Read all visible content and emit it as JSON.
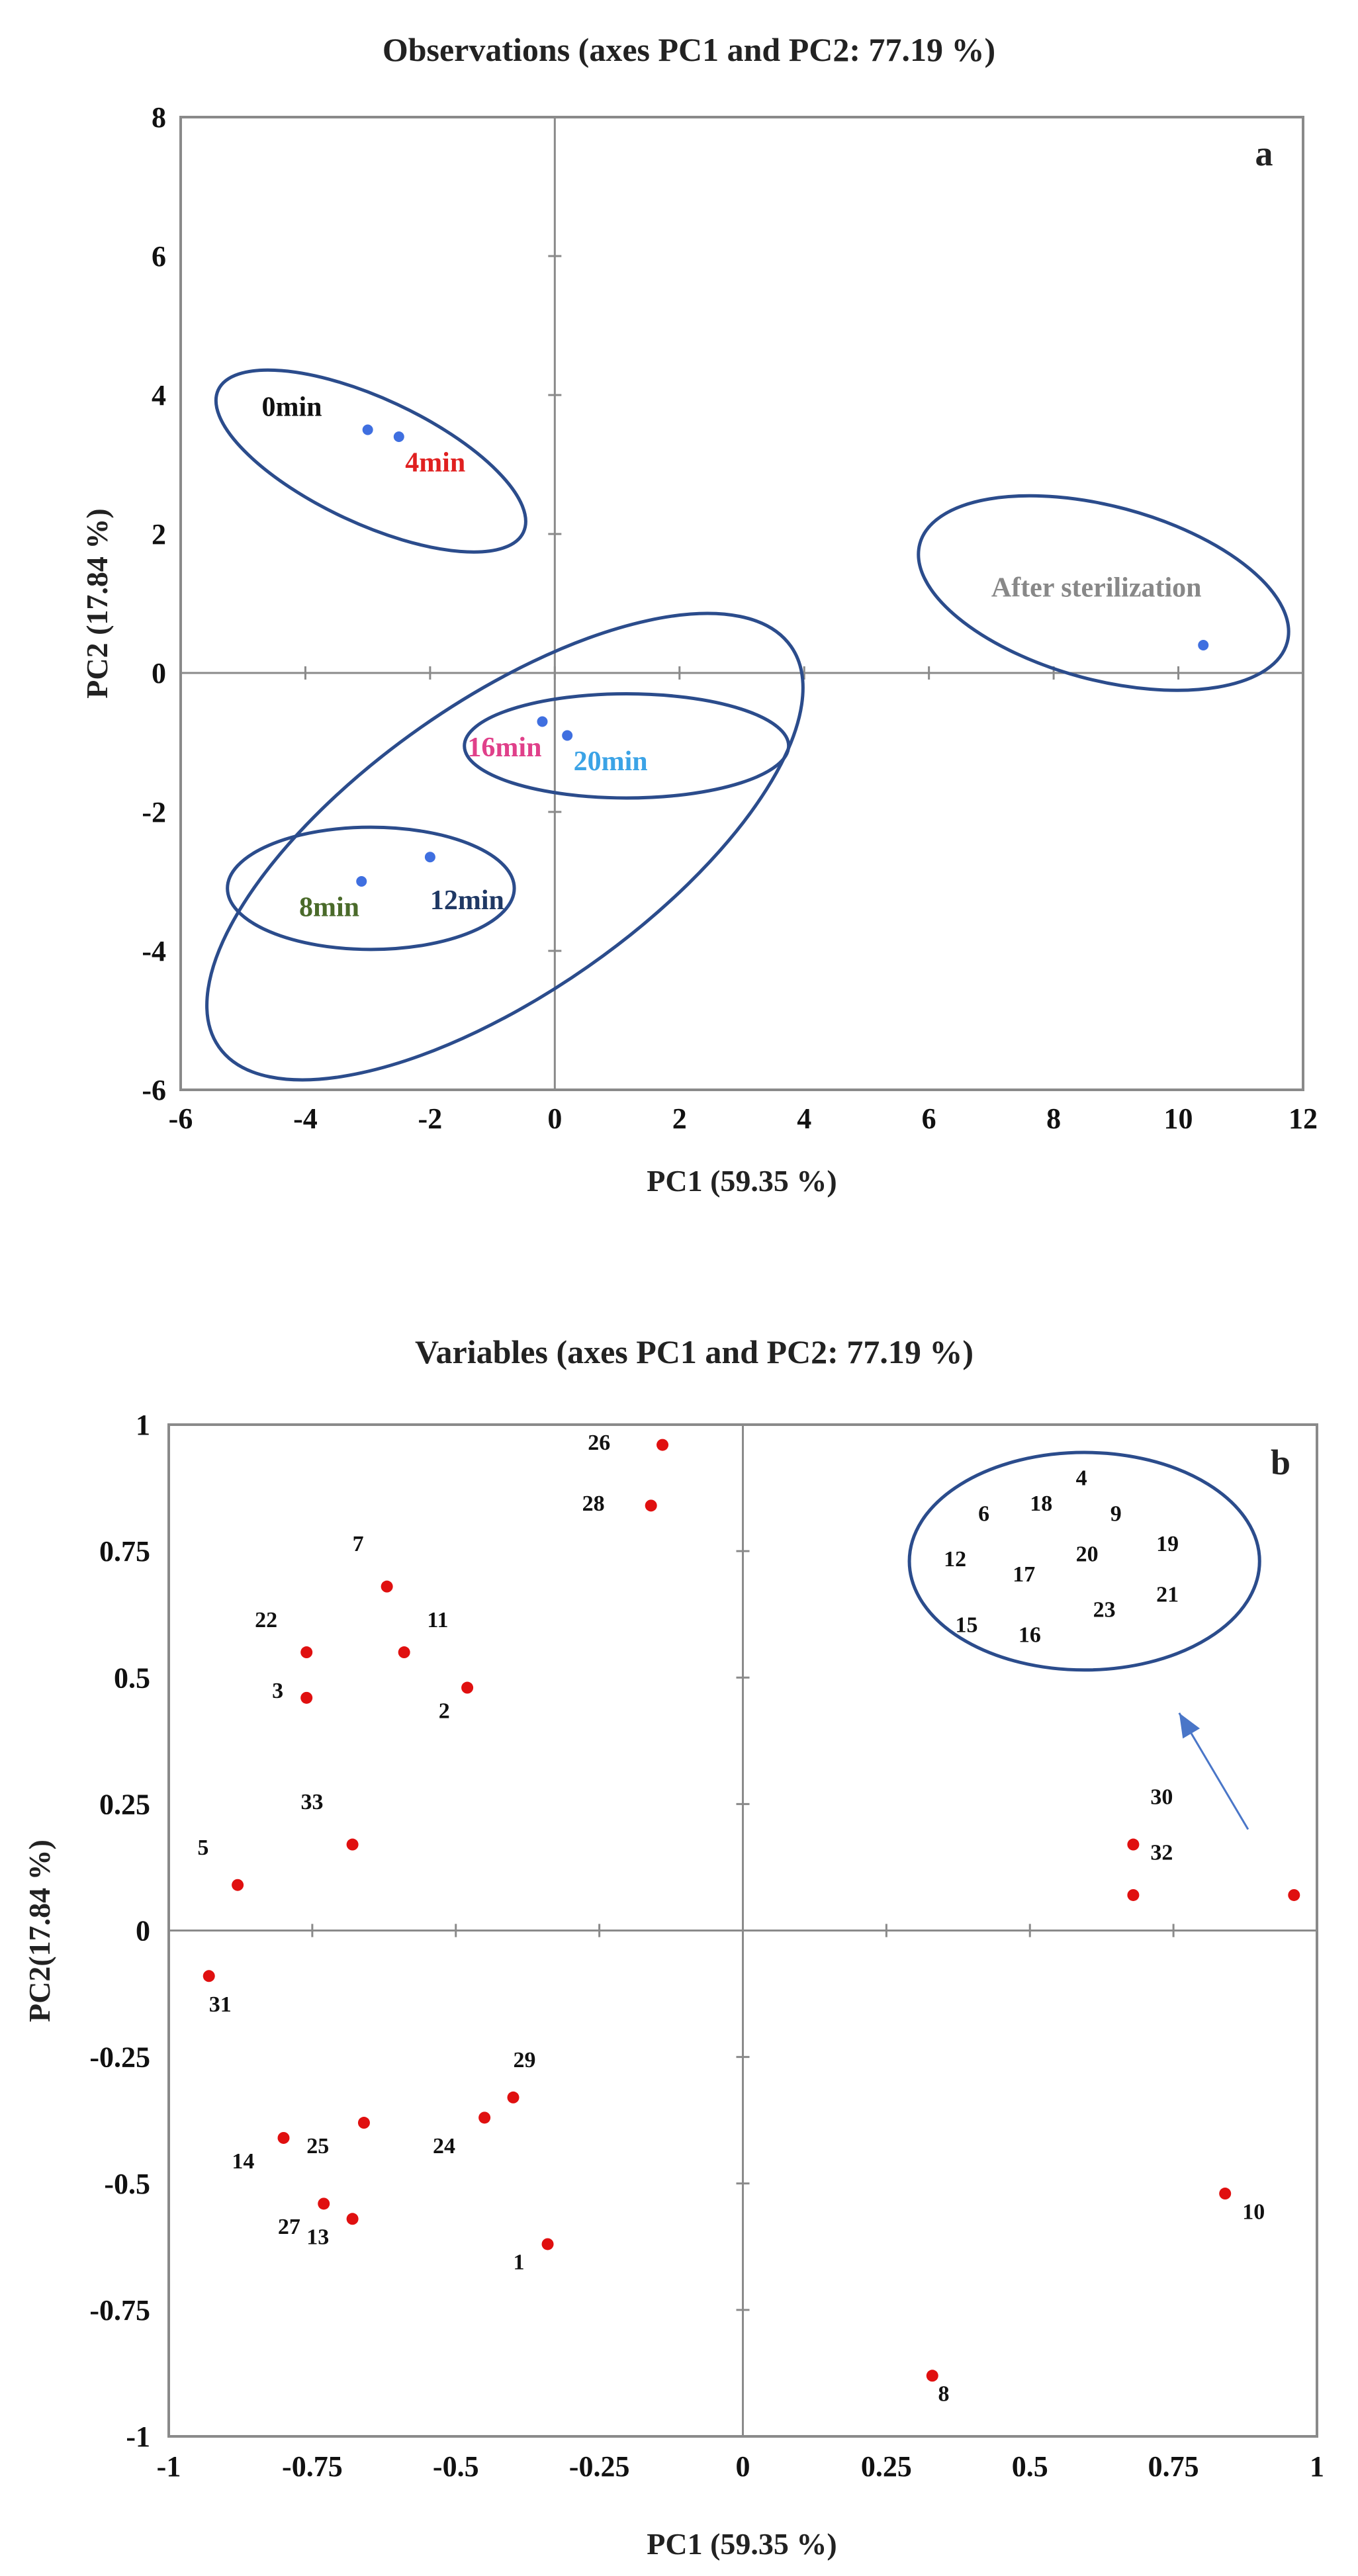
{
  "chart_data": [
    {
      "panel": "a",
      "type": "scatter",
      "title": "Observations (axes PC1 and PC2: 77.19 %)",
      "xlabel": "PC1 (59.35 %)",
      "ylabel": "PC2 (17.84 %)",
      "xlim": [
        -6,
        12
      ],
      "ylim": [
        -6,
        8
      ],
      "xticks": [
        -6,
        -4,
        -2,
        0,
        2,
        4,
        6,
        8,
        10,
        12
      ],
      "yticks": [
        -6,
        -4,
        -2,
        0,
        2,
        4,
        6,
        8
      ],
      "point_color": "#3f6fe0",
      "axis_color": "#777777",
      "ellipse_color": "#2b4c8c",
      "points": [
        {
          "x": -3.0,
          "y": 3.5
        },
        {
          "x": -2.5,
          "y": 3.4
        },
        {
          "x": -3.1,
          "y": -3.0
        },
        {
          "x": -2.0,
          "y": -2.65
        },
        {
          "x": -0.2,
          "y": -0.7
        },
        {
          "x": 0.2,
          "y": -0.9
        },
        {
          "x": 10.4,
          "y": 0.4
        }
      ],
      "labels": [
        {
          "text": "0min",
          "x": -4.7,
          "y": 3.7,
          "color": "#111111"
        },
        {
          "text": "4min",
          "x": -2.4,
          "y": 2.9,
          "color": "#e02020"
        },
        {
          "text": "8min",
          "x": -4.1,
          "y": -3.5,
          "color": "#4a6a2a"
        },
        {
          "text": "12min",
          "x": -2.0,
          "y": -3.4,
          "color": "#1f3864"
        },
        {
          "text": "16min",
          "x": -1.4,
          "y": -1.2,
          "color": "#e0408a"
        },
        {
          "text": "20min",
          "x": 0.3,
          "y": -1.4,
          "color": "#3ba3e6"
        },
        {
          "text": "After sterilization",
          "x": 7.0,
          "y": 1.1,
          "color": "#888888"
        }
      ],
      "ellipses": [
        {
          "cx": -2.95,
          "cy": 3.05,
          "rx": 2.7,
          "ry": 0.9,
          "angle": -25
        },
        {
          "cx": 1.15,
          "cy": -1.05,
          "rx": 2.6,
          "ry": 0.75,
          "angle": 0
        },
        {
          "cx": -2.95,
          "cy": -3.1,
          "rx": 2.3,
          "ry": 0.88,
          "angle": 0
        },
        {
          "cx": -0.8,
          "cy": -2.5,
          "rx": 5.6,
          "ry": 2.1,
          "angle": 35
        },
        {
          "cx": 8.8,
          "cy": 1.15,
          "rx": 3.05,
          "ry": 1.25,
          "angle": -15
        }
      ],
      "panel_tag": "a"
    },
    {
      "panel": "b",
      "type": "scatter",
      "title": "Variables (axes PC1 and PC2: 77.19 %)",
      "xlabel": "PC1 (59.35 %)",
      "ylabel": "PC2(17.84 %)",
      "xlim": [
        -1,
        1
      ],
      "ylim": [
        -1,
        1
      ],
      "xticks": [
        -1,
        -0.75,
        -0.5,
        -0.25,
        0,
        0.25,
        0.5,
        0.75,
        1
      ],
      "yticks": [
        -1,
        -0.75,
        -0.5,
        -0.25,
        0,
        0.25,
        0.5,
        0.75,
        1
      ],
      "point_color": "#e01010",
      "axis_color": "#777777",
      "ellipse_color": "#2b4c8c",
      "points": [
        {
          "x": -0.14,
          "y": 0.96
        },
        {
          "x": -0.16,
          "y": 0.84
        },
        {
          "x": -0.62,
          "y": 0.68
        },
        {
          "x": -0.59,
          "y": 0.55
        },
        {
          "x": -0.76,
          "y": 0.55
        },
        {
          "x": -0.76,
          "y": 0.46
        },
        {
          "x": -0.48,
          "y": 0.48
        },
        {
          "x": -0.68,
          "y": 0.17
        },
        {
          "x": -0.88,
          "y": 0.09
        },
        {
          "x": -0.93,
          "y": -0.09
        },
        {
          "x": -0.4,
          "y": -0.33
        },
        {
          "x": -0.45,
          "y": -0.37
        },
        {
          "x": -0.66,
          "y": -0.38
        },
        {
          "x": -0.8,
          "y": -0.41
        },
        {
          "x": -0.73,
          "y": -0.54
        },
        {
          "x": -0.68,
          "y": -0.57
        },
        {
          "x": -0.34,
          "y": -0.62
        },
        {
          "x": 0.68,
          "y": 0.17
        },
        {
          "x": 0.68,
          "y": 0.07
        },
        {
          "x": 0.96,
          "y": 0.07
        },
        {
          "x": 0.84,
          "y": -0.52
        },
        {
          "x": 0.33,
          "y": -0.88
        }
      ],
      "labels": [
        {
          "text": "26",
          "x": -0.27,
          "y": 0.95
        },
        {
          "text": "28",
          "x": -0.28,
          "y": 0.83
        },
        {
          "text": "7",
          "x": -0.68,
          "y": 0.75
        },
        {
          "text": "11",
          "x": -0.55,
          "y": 0.6
        },
        {
          "text": "22",
          "x": -0.85,
          "y": 0.6
        },
        {
          "text": "3",
          "x": -0.82,
          "y": 0.46
        },
        {
          "text": "2",
          "x": -0.53,
          "y": 0.42
        },
        {
          "text": "33",
          "x": -0.77,
          "y": 0.24
        },
        {
          "text": "5",
          "x": -0.95,
          "y": 0.15
        },
        {
          "text": "31",
          "x": -0.93,
          "y": -0.16
        },
        {
          "text": "29",
          "x": -0.4,
          "y": -0.27
        },
        {
          "text": "24",
          "x": -0.54,
          "y": -0.44
        },
        {
          "text": "25",
          "x": -0.76,
          "y": -0.44
        },
        {
          "text": "14",
          "x": -0.89,
          "y": -0.47
        },
        {
          "text": "27",
          "x": -0.81,
          "y": -0.6
        },
        {
          "text": "13",
          "x": -0.76,
          "y": -0.62
        },
        {
          "text": "1",
          "x": -0.4,
          "y": -0.67
        },
        {
          "text": "30",
          "x": 0.71,
          "y": 0.25
        },
        {
          "text": "32",
          "x": 0.71,
          "y": 0.14
        },
        {
          "text": "10",
          "x": 0.87,
          "y": -0.57
        },
        {
          "text": "8",
          "x": 0.34,
          "y": -0.93
        },
        {
          "text": "4",
          "x": 0.58,
          "y": 0.88
        },
        {
          "text": "18",
          "x": 0.5,
          "y": 0.83
        },
        {
          "text": "6",
          "x": 0.41,
          "y": 0.81
        },
        {
          "text": "9",
          "x": 0.64,
          "y": 0.81
        },
        {
          "text": "19",
          "x": 0.72,
          "y": 0.75
        },
        {
          "text": "12",
          "x": 0.35,
          "y": 0.72
        },
        {
          "text": "20",
          "x": 0.58,
          "y": 0.73
        },
        {
          "text": "17",
          "x": 0.47,
          "y": 0.69
        },
        {
          "text": "21",
          "x": 0.72,
          "y": 0.65
        },
        {
          "text": "23",
          "x": 0.61,
          "y": 0.62
        },
        {
          "text": "15",
          "x": 0.37,
          "y": 0.59
        },
        {
          "text": "16",
          "x": 0.48,
          "y": 0.57
        }
      ],
      "ellipses": [
        {
          "cx": 0.595,
          "cy": 0.73,
          "rx": 0.305,
          "ry": 0.215,
          "angle": 0
        }
      ],
      "arrow": {
        "from": [
          0.88,
          0.2
        ],
        "to": [
          0.76,
          0.43
        ],
        "color": "#4a76c8"
      },
      "panel_tag": "b"
    }
  ]
}
